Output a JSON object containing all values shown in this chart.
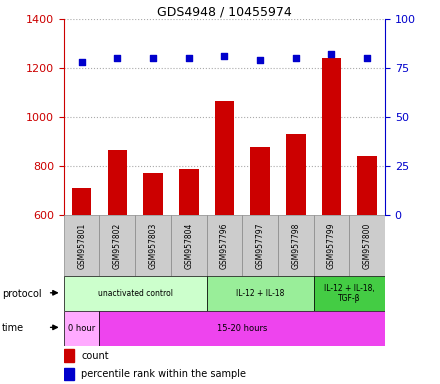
{
  "title": "GDS4948 / 10455974",
  "samples": [
    "GSM957801",
    "GSM957802",
    "GSM957803",
    "GSM957804",
    "GSM957796",
    "GSM957797",
    "GSM957798",
    "GSM957799",
    "GSM957800"
  ],
  "counts": [
    710,
    865,
    770,
    790,
    1065,
    878,
    932,
    1242,
    840
  ],
  "percentiles": [
    78,
    80,
    80,
    80,
    81,
    79,
    80,
    82,
    80
  ],
  "ylim_left": [
    600,
    1400
  ],
  "ylim_right": [
    0,
    100
  ],
  "yticks_left": [
    600,
    800,
    1000,
    1200,
    1400
  ],
  "yticks_right": [
    0,
    25,
    50,
    75,
    100
  ],
  "bar_color": "#cc0000",
  "dot_color": "#0000cc",
  "bar_width": 0.55,
  "protocol_groups": [
    {
      "label": "unactivated control",
      "start": 0,
      "end": 4,
      "color": "#ccffcc"
    },
    {
      "label": "IL-12 + IL-18",
      "start": 4,
      "end": 7,
      "color": "#99ee99"
    },
    {
      "label": "IL-12 + IL-18,\nTGF-β",
      "start": 7,
      "end": 9,
      "color": "#44cc44"
    }
  ],
  "time_groups": [
    {
      "label": "0 hour",
      "start": 0,
      "end": 1,
      "color": "#ffaaff"
    },
    {
      "label": "15-20 hours",
      "start": 1,
      "end": 9,
      "color": "#ee44ee"
    }
  ],
  "legend_count_color": "#cc0000",
  "legend_percentile_color": "#0000cc",
  "grid_color": "#aaaaaa",
  "label_bg_color": "#cccccc",
  "label_border_color": "#888888"
}
